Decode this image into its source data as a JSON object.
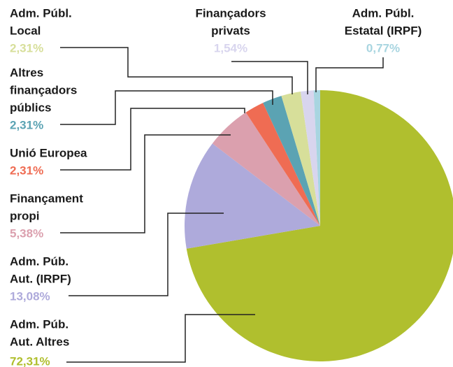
{
  "chart_data": {
    "type": "pie",
    "labels": [
      [
        "Adm. Púb.",
        "Aut. Altres"
      ],
      [
        "Adm. Púb.",
        "Aut. (IRPF)"
      ],
      [
        "Finançament",
        "propi"
      ],
      [
        "Unió Europea"
      ],
      [
        "Altres",
        "finançadors",
        "públics"
      ],
      [
        "Adm. Públ.",
        "Local"
      ],
      [
        "Finançadors",
        "privats"
      ],
      [
        "Adm. Públ.",
        "Estatal (IRPF)"
      ]
    ],
    "values": [
      72.31,
      13.08,
      5.38,
      2.31,
      2.31,
      2.31,
      1.54,
      0.77
    ],
    "value_labels": [
      "72,31%",
      "13,08%",
      "5,38%",
      "2,31%",
      "2,31%",
      "2,31%",
      "1,54%",
      "0,77%"
    ],
    "colors": [
      "#b0bf2e",
      "#aeaadb",
      "#dba0ae",
      "#ef6c53",
      "#5ba3b3",
      "#d7df9a",
      "#d8d5ee",
      "#a8d5e0"
    ]
  }
}
